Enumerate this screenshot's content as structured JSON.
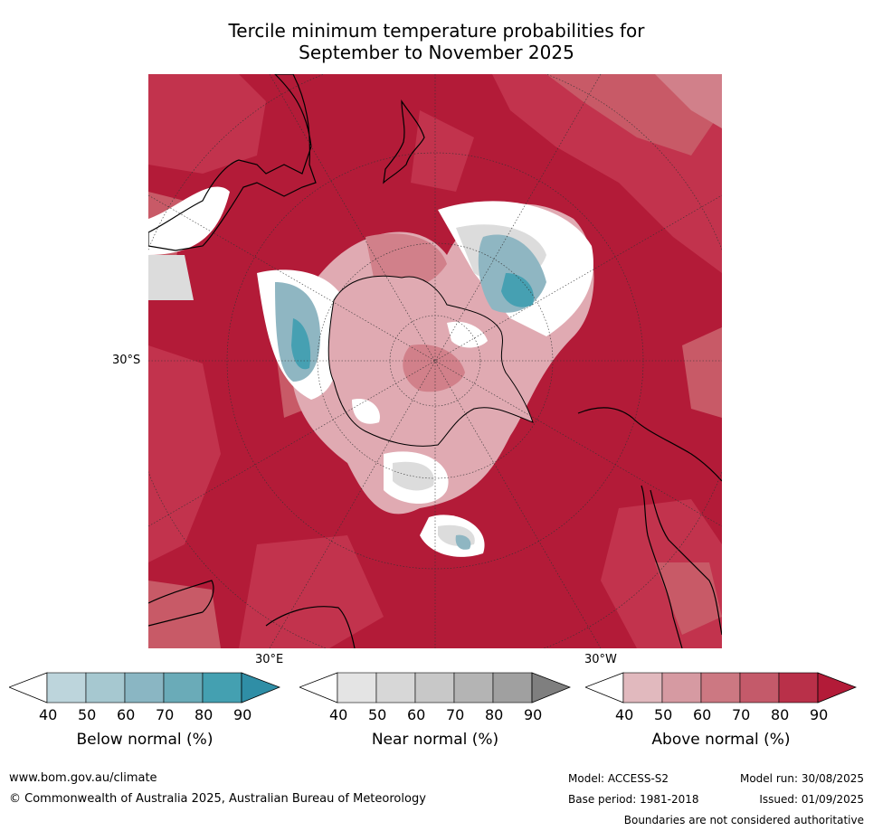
{
  "title_line1": "Tercile minimum temperature probabilities for",
  "title_line2": "September to November 2025",
  "map": {
    "lat_label": "30°S",
    "lon_label_left": "30°E",
    "lon_label_right": "30°W",
    "colors": {
      "above_90": "#b31b38",
      "above_80": "#c2334d",
      "above_70": "#c85a67",
      "above_60": "#d1808a",
      "above_50": "#e0aab2",
      "near_white": "#ffffff",
      "near_grey": "#dcdcdc",
      "below_60": "#8fb6c2",
      "below_80": "#46a0b2"
    }
  },
  "colorbars": [
    {
      "label": "Below normal (%)",
      "ticks": [
        "40",
        "50",
        "60",
        "70",
        "80",
        "90"
      ],
      "colors": [
        "#bdd5dc",
        "#a6c8d0",
        "#8ab6c3",
        "#6aabb8",
        "#44a0b1"
      ],
      "arrow_color": "#2f8ea6"
    },
    {
      "label": "Near normal (%)",
      "ticks": [
        "40",
        "50",
        "60",
        "70",
        "80",
        "90"
      ],
      "colors": [
        "#e4e4e4",
        "#d7d7d7",
        "#c8c8c8",
        "#b4b4b4",
        "#a0a0a0"
      ],
      "arrow_color": "#7f7f7f"
    },
    {
      "label": "Above normal (%)",
      "ticks": [
        "40",
        "50",
        "60",
        "70",
        "80",
        "90"
      ],
      "colors": [
        "#e1b9be",
        "#d69aa2",
        "#cc7882",
        "#c45a6a",
        "#b93049"
      ],
      "arrow_color": "#b31b38"
    }
  ],
  "footer": {
    "website": "www.bom.gov.au/climate",
    "copyright": "© Commonwealth of Australia 2025, Australian Bureau of Meteorology",
    "model": "Model: ACCESS-S2",
    "base_period": "Base period: 1981-2018",
    "model_run": "Model run: 30/08/2025",
    "issued": "Issued: 01/09/2025",
    "disclaimer": "Boundaries are not considered authoritative"
  }
}
